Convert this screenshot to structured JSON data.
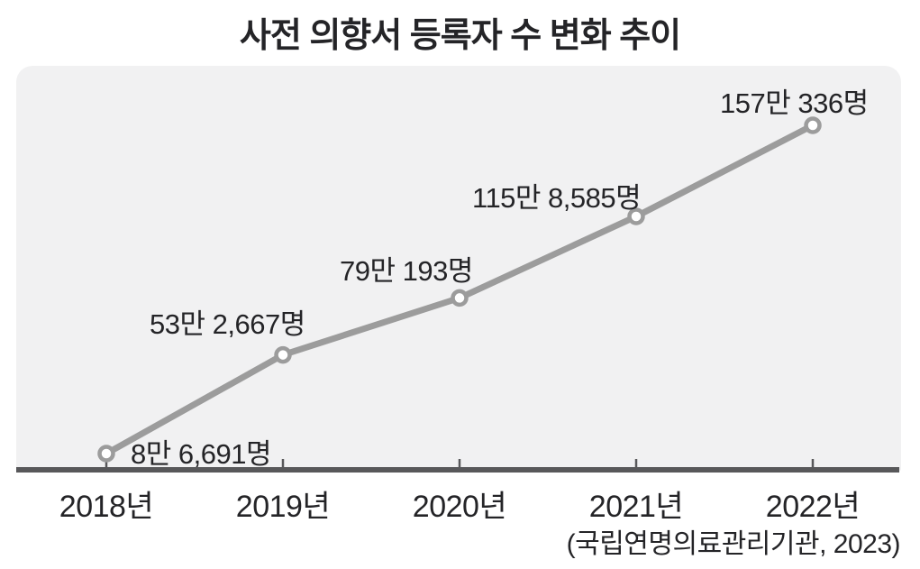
{
  "header": {
    "title": "사전 의향서 등록자 수 변화 추이"
  },
  "source": "(국립연명의료관리기관, 2023)",
  "chart_data": {
    "type": "line",
    "title": "사전 의향서 등록자 수 변화 추이",
    "categories": [
      "2018년",
      "2019년",
      "2020년",
      "2021년",
      "2022년"
    ],
    "values": [
      86691,
      532667,
      790193,
      1158585,
      1570336
    ],
    "point_labels": [
      "8만 6,691명",
      "53만 2,667명",
      "79만 193명",
      "115만 8,585명",
      "157만 336명"
    ],
    "unit": "명",
    "source": "(국립연명의료관리기관, 2023)",
    "legend": "none",
    "grid": false,
    "ylim": [
      86691,
      1570336
    ],
    "colors": {
      "line": "#9c9c9c",
      "marker_fill": "#ffffff",
      "marker_stroke": "#9c9c9c",
      "axis": "#58585a",
      "panel_background": "#f1f1f2",
      "text": "#242427",
      "page_background": "#ffffff"
    }
  }
}
